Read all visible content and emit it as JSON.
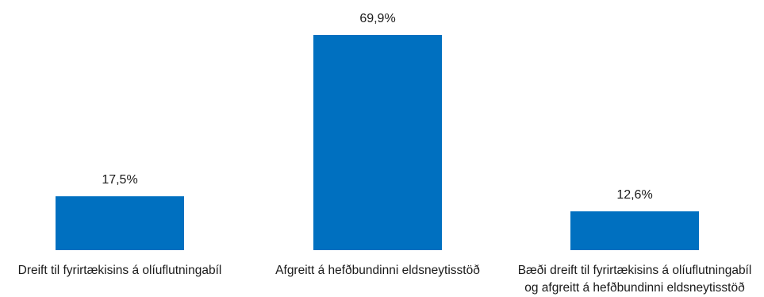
{
  "chart_data": {
    "type": "bar",
    "title": "",
    "xlabel": "",
    "ylabel": "",
    "categories": [
      [
        "Dreift til fyrirtækisins á olíuflutningabíl"
      ],
      [
        "Afgreitt á hefðbundinni eldsneytisstöð"
      ],
      [
        "Bæði dreift til fyrirtækisins á olíuflutningabíl",
        "og afgreitt á hefðbundinni eldsneytisstöð"
      ]
    ],
    "values": [
      17.5,
      69.9,
      12.6
    ],
    "value_labels": [
      "17,5%",
      "69,9%",
      "12,6%"
    ],
    "unit": "%",
    "ylim": [
      0,
      69.9
    ],
    "grid": false,
    "legend": "none",
    "bar_color": "#0070C0"
  }
}
